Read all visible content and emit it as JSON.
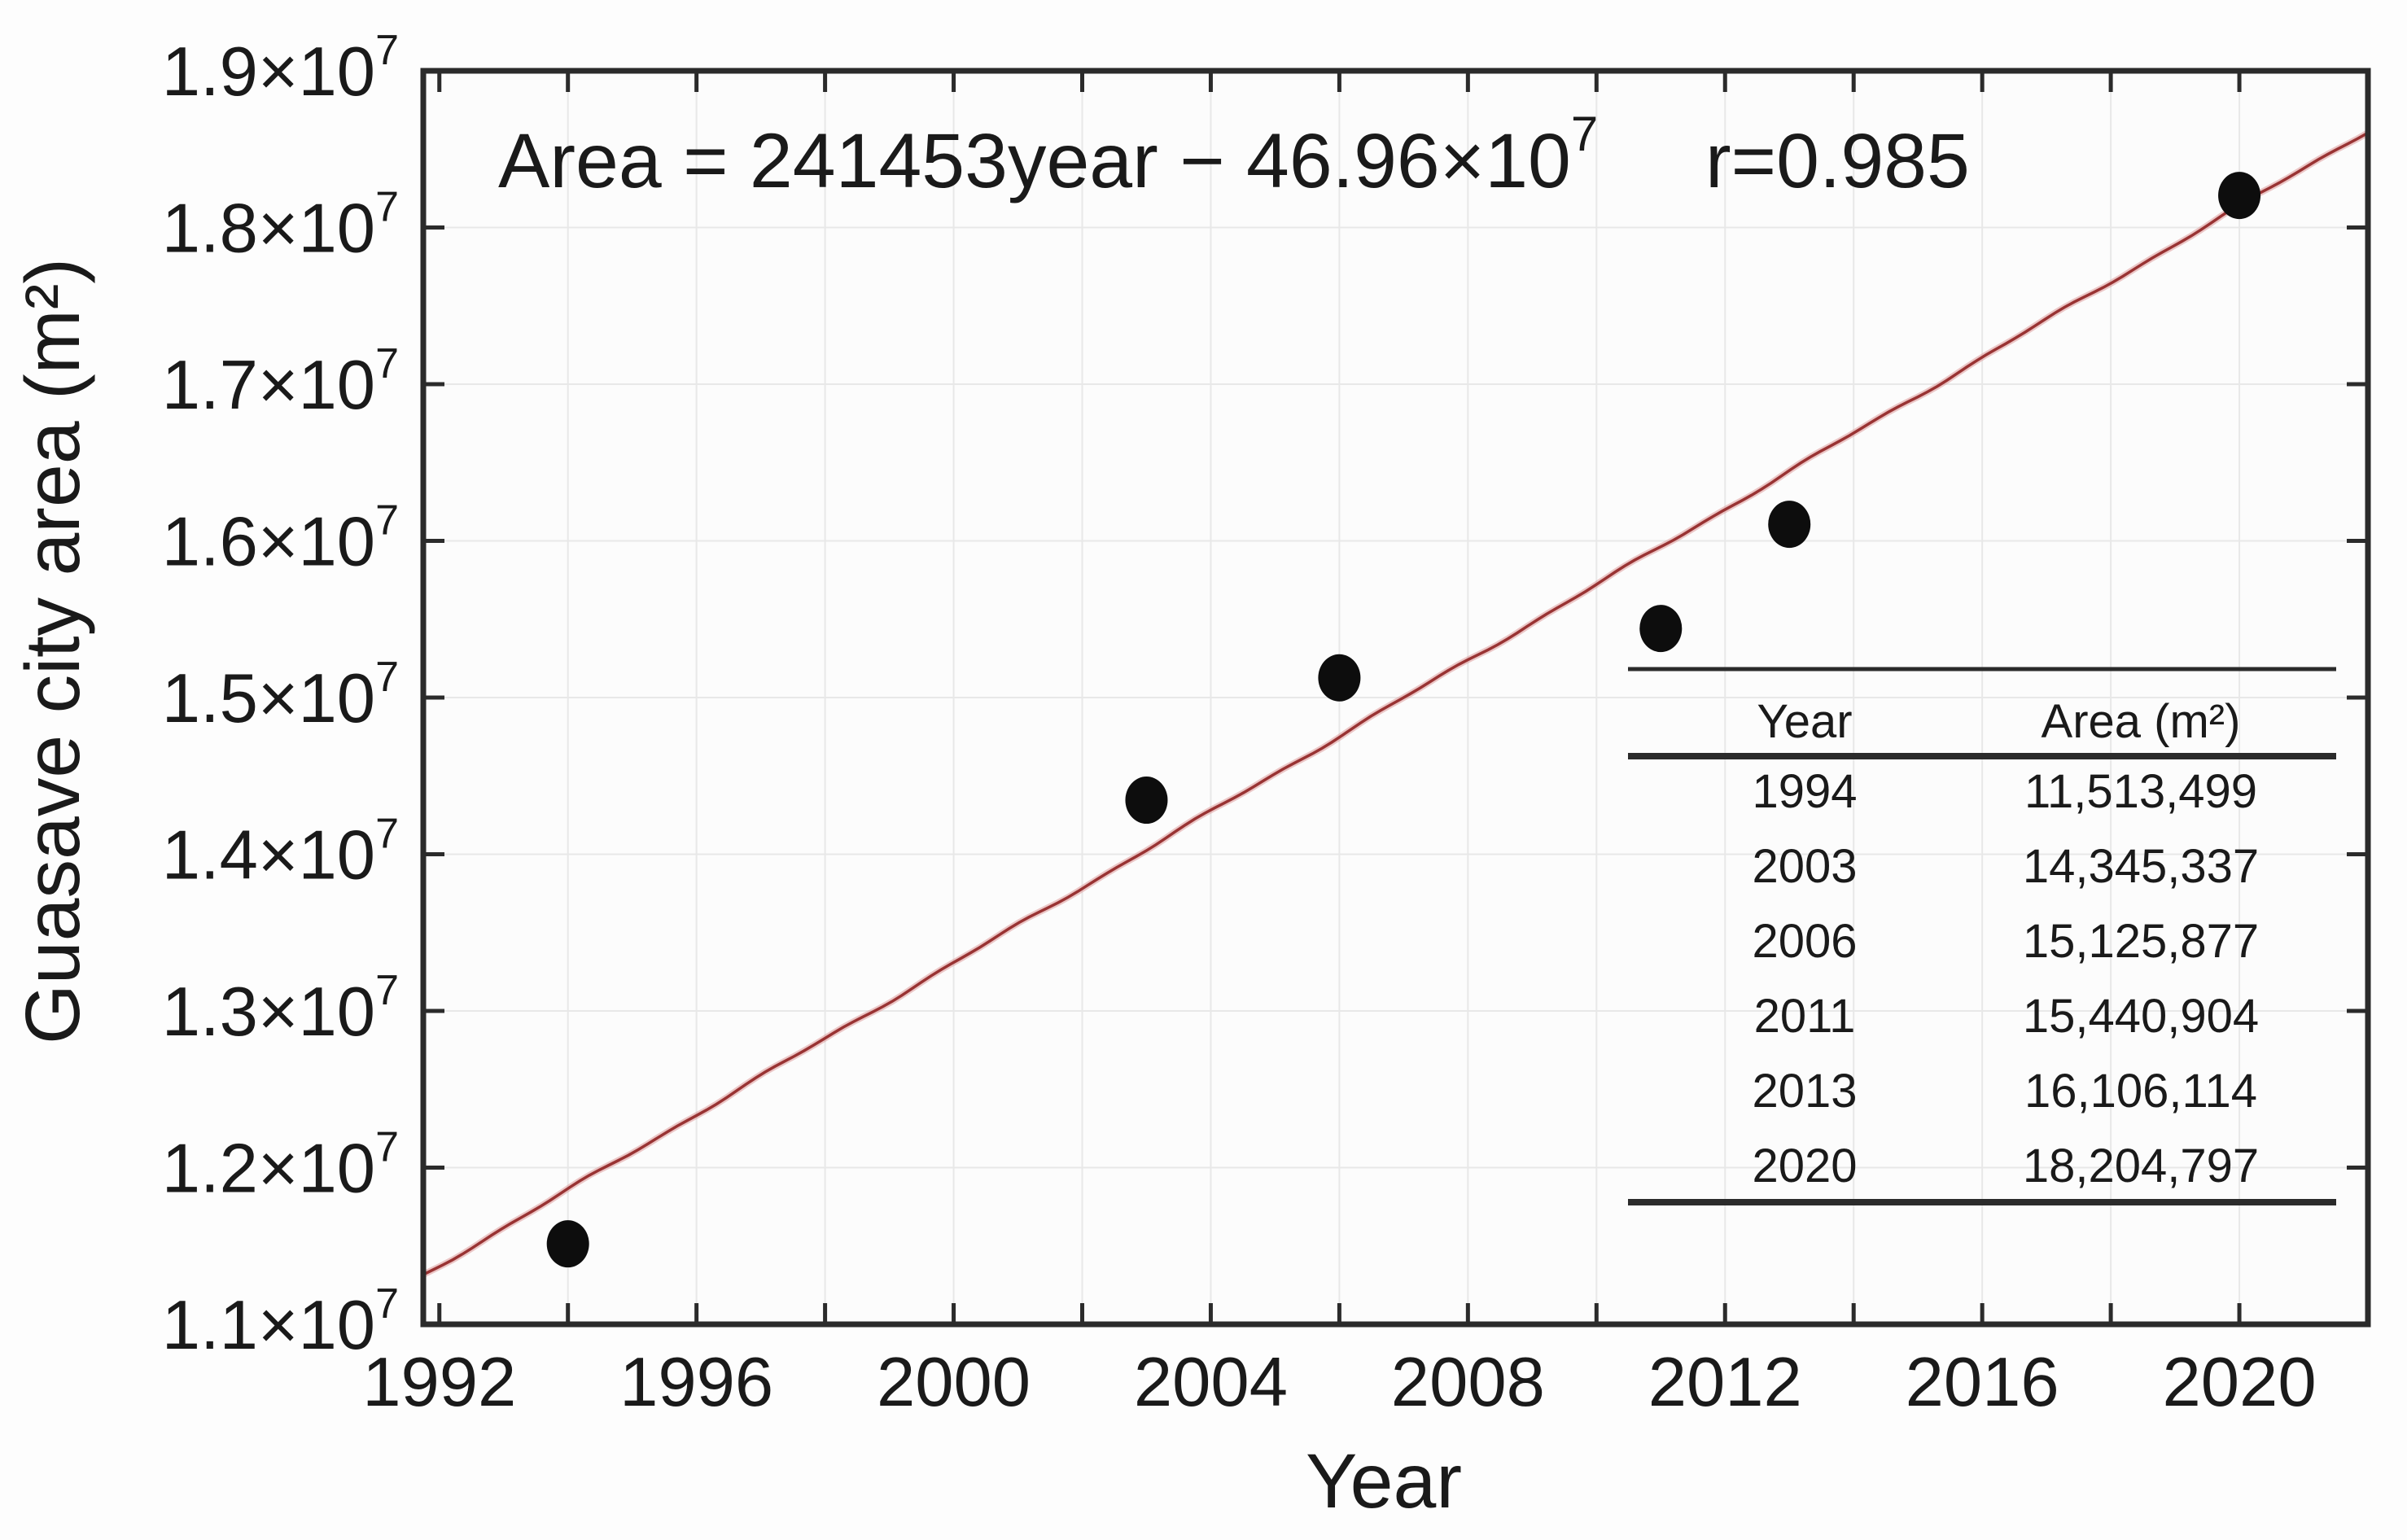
{
  "chart_data": {
    "type": "scatter",
    "annotation": {
      "equation_main": "Area = 241453year − 46.96×10",
      "equation_exponent": "7",
      "r_label": "r=0.985"
    },
    "xlabel": "Year",
    "ylabel": "Guasave city area (m²)",
    "xlim": [
      1991.75,
      2022.0
    ],
    "ylim": [
      11000000,
      19000000
    ],
    "x_ticks": [
      1992,
      1994,
      1996,
      1998,
      2000,
      2002,
      2004,
      2006,
      2008,
      2010,
      2012,
      2014,
      2016,
      2018,
      2020
    ],
    "x_labeled_ticks": [
      {
        "year": 1992,
        "label": "1992"
      },
      {
        "year": 1996,
        "label": "1996"
      },
      {
        "year": 2000,
        "label": "2000"
      },
      {
        "year": 2004,
        "label": "2004"
      },
      {
        "year": 2008,
        "label": "2008"
      },
      {
        "year": 2012,
        "label": "2012"
      },
      {
        "year": 2016,
        "label": "2016"
      },
      {
        "year": 2020,
        "label": "2020"
      }
    ],
    "y_ticks": [
      {
        "value": 11000000,
        "label": "1.1"
      },
      {
        "value": 12000000,
        "label": "1.2"
      },
      {
        "value": 13000000,
        "label": "1.3"
      },
      {
        "value": 14000000,
        "label": "1.4"
      },
      {
        "value": 15000000,
        "label": "1.5"
      },
      {
        "value": 16000000,
        "label": "1.6"
      },
      {
        "value": 17000000,
        "label": "1.7"
      },
      {
        "value": 18000000,
        "label": "1.8"
      },
      {
        "value": 19000000,
        "label": "1.9"
      }
    ],
    "y_tick_suffix": "×10",
    "y_tick_exponent": "7",
    "grid": true,
    "points": [
      {
        "year": 1994,
        "area": 11513499
      },
      {
        "year": 2003,
        "area": 14345337
      },
      {
        "year": 2006,
        "area": 15125877
      },
      {
        "year": 2011,
        "area": 15440904
      },
      {
        "year": 2013,
        "area": 16106114
      },
      {
        "year": 2020,
        "area": 18204797
      }
    ],
    "regression": {
      "slope": 241453,
      "intercept": -469600000
    },
    "colors": {
      "line_core": "#993333",
      "line_fringe": "#dd9999",
      "point": "#0d0d0d",
      "frame": "#2b2b2b",
      "grid": "#e8e8e8",
      "text": "#1a1a1a",
      "plot_background": "#fcfcfc"
    }
  },
  "inset_table": {
    "headers": [
      "Year",
      "Area (m²)"
    ],
    "rows": [
      [
        "1994",
        "11,513,499"
      ],
      [
        "2003",
        "14,345,337"
      ],
      [
        "2006",
        "15,125,877"
      ],
      [
        "2011",
        "15,440,904"
      ],
      [
        "2013",
        "16,106,114"
      ],
      [
        "2020",
        "18,204,797"
      ]
    ]
  }
}
